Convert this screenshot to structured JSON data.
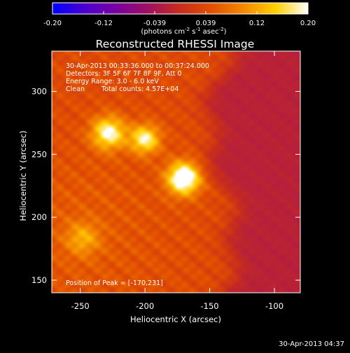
{
  "chart_data": {
    "type": "heatmap",
    "title": "Reconstructed RHESSI Image",
    "xlabel": "Heliocentric X (arcsec)",
    "ylabel": "Heliocentric Y (arcsec)",
    "xlim": [
      -272,
      -80
    ],
    "ylim": [
      140,
      332
    ],
    "xticks": [
      -250,
      -200,
      -150,
      -100
    ],
    "yticks": [
      150,
      200,
      250,
      300
    ],
    "colorbar": {
      "label_text": "(photons cm",
      "label_sup1": "-2",
      "label_mid1": " s",
      "label_sup2": "-1",
      "label_mid2": " asec",
      "label_sup3": "-2",
      "label_end": ")",
      "min": -0.2,
      "max": 0.2,
      "ticks": [
        "-0.20",
        "-0.12",
        "-0.039",
        "0.039",
        "0.12",
        "0.20"
      ],
      "colors": [
        "#0000ff",
        "#4b00d0",
        "#7a00a0",
        "#a01060",
        "#c82d1c",
        "#e25000",
        "#f58a00",
        "#ffd000",
        "#ffffff"
      ]
    },
    "sources": [
      {
        "x": -170,
        "y": 231,
        "peak": 0.2,
        "sigma": 9
      },
      {
        "x": -228,
        "y": 267,
        "peak": 0.155,
        "sigma": 9
      },
      {
        "x": -200,
        "y": 262,
        "peak": 0.145,
        "sigma": 8
      },
      {
        "x": -248,
        "y": 183,
        "peak": 0.07,
        "sigma": 9
      }
    ],
    "annotations": {
      "time": "30-Apr-2013 00:33:36.000 to 00:37:24.000",
      "detectors": "Detectors: 3F 5F 6F 7F 8F 9F, Att 0",
      "energy": "Energy Range: 3.0 - 6.0 keV",
      "clean": "Clean",
      "total_counts": "Total counts: 4.57E+04",
      "peak": "Position of Peak = [-170,231]"
    },
    "footer_date": "30-Apr-2013 04:37"
  }
}
